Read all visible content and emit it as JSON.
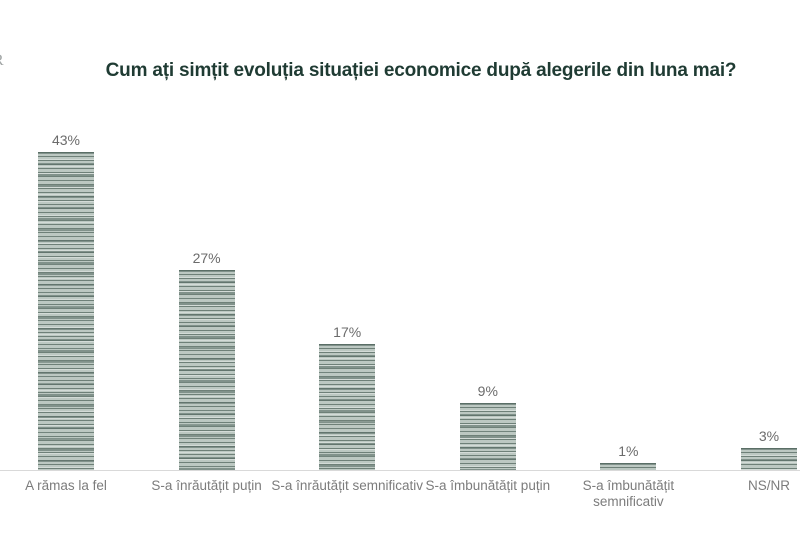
{
  "logo": {
    "text": "R"
  },
  "chart_data": {
    "type": "bar",
    "title": "Cum ați simțit evoluția situației economice după alegerile din luna mai?",
    "categories": [
      "A rămas la fel",
      "S-a înrăutățit puțin",
      "S-a înrăutățit semnificativ",
      "S-a îmbunătățit puțin",
      "S-a îmbunătățit semnificativ",
      "NS/NR"
    ],
    "category_label_lines": [
      [
        "A rămas la fel"
      ],
      [
        "S-a înrăutățit puțin"
      ],
      [
        "S-a înrăutățit semnificativ"
      ],
      [
        "S-a îmbunătățit puțin"
      ],
      [
        "S-a îmbunătățit",
        "semnificativ"
      ],
      [
        "NS/NR"
      ]
    ],
    "values": [
      43,
      27,
      17,
      9,
      1,
      3
    ],
    "value_labels": [
      "43%",
      "27%",
      "17%",
      "9%",
      "1%",
      "3%"
    ],
    "unit": "%",
    "xlabel": "",
    "ylabel": "",
    "ylim": [
      0,
      45
    ],
    "grid": false,
    "legend": null,
    "style": {
      "title_color": "#1f3b33",
      "value_label_color": "#6b6b6b",
      "category_label_color": "#7c7c7c",
      "bar_base_color": "#bcc8c2",
      "bar_stripe_color": "#5a6e66",
      "axis_line_color": "#d9d9d9",
      "background": "#ffffff"
    }
  }
}
